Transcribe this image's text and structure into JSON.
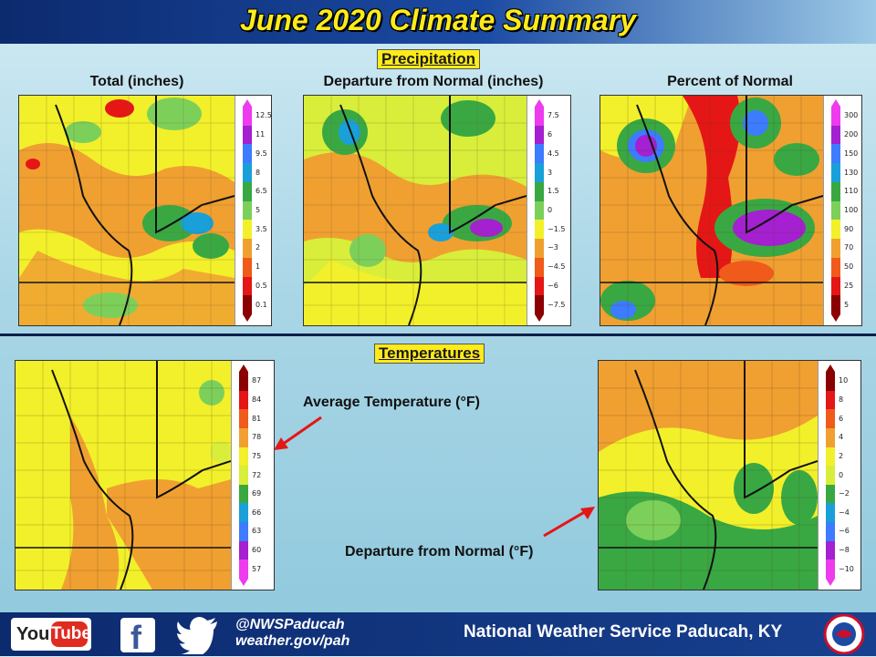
{
  "title": "June 2020 Climate Summary",
  "sections": {
    "precipitation": "Precipitation",
    "temperatures": "Temperatures"
  },
  "maps": {
    "precip_total": {
      "title": "Total (inches)",
      "legend": [
        "12.5",
        "11",
        "9.5",
        "8",
        "6.5",
        "5",
        "3.5",
        "2",
        "1",
        "0.5",
        "0.1"
      ],
      "colors": [
        "#ee3bee",
        "#a420d0",
        "#3d7bff",
        "#1aa0d8",
        "#39a843",
        "#7cd05a",
        "#f2f02a",
        "#f0a031",
        "#f05a1a",
        "#e51616",
        "#8b0000"
      ]
    },
    "precip_departure": {
      "title": "Departure from Normal (inches)",
      "legend": [
        "7.5",
        "6",
        "4.5",
        "3",
        "1.5",
        "0",
        "−1.5",
        "−3",
        "−4.5",
        "−6",
        "−7.5"
      ],
      "colors": [
        "#ee3bee",
        "#a420d0",
        "#3d7bff",
        "#1aa0d8",
        "#39a843",
        "#7cd05a",
        "#f2f02a",
        "#f0a031",
        "#f05a1a",
        "#e51616",
        "#8b0000"
      ]
    },
    "precip_percent": {
      "title": "Percent of Normal",
      "legend": [
        "300",
        "200",
        "150",
        "130",
        "110",
        "100",
        "90",
        "70",
        "50",
        "25",
        "5"
      ],
      "colors": [
        "#ee3bee",
        "#a420d0",
        "#3d7bff",
        "#1aa0d8",
        "#39a843",
        "#7cd05a",
        "#f2f02a",
        "#f0a031",
        "#f05a1a",
        "#e51616",
        "#8b0000"
      ]
    },
    "temp_avg": {
      "label": "Average Temperature (°F)",
      "legend": [
        "87",
        "84",
        "81",
        "78",
        "75",
        "72",
        "69",
        "66",
        "63",
        "60",
        "57"
      ],
      "colors": [
        "#8b0000",
        "#e51616",
        "#f05a1a",
        "#f0a031",
        "#f2f02a",
        "#d8ee3a",
        "#39a843",
        "#1aa0d8",
        "#3d7bff",
        "#a420d0",
        "#ee3bee"
      ]
    },
    "temp_departure": {
      "label": "Departure from Normal (°F)",
      "legend": [
        "10",
        "8",
        "6",
        "4",
        "2",
        "0",
        "−2",
        "−4",
        "−6",
        "−8",
        "−10"
      ],
      "colors": [
        "#8b0000",
        "#e51616",
        "#f05a1a",
        "#f0a031",
        "#f2f02a",
        "#d8ee3a",
        "#39a843",
        "#1aa0d8",
        "#3d7bff",
        "#a420d0",
        "#ee3bee"
      ]
    }
  },
  "footer": {
    "youtube_you": "You",
    "youtube_tube": "Tube",
    "twitter_handle": "@NWSPaducah",
    "website": "weather.gov/pah",
    "agency": "National Weather Service Paducah, KY"
  }
}
